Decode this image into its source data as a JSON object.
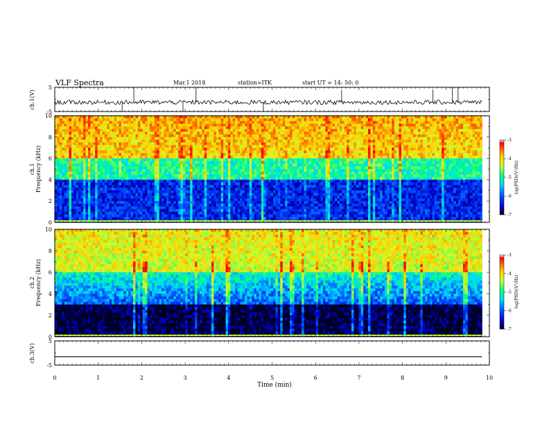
{
  "header": {
    "title": "VLF Spectra",
    "date": "Mar.1   2018",
    "station": "station=ITK",
    "start": "start  UT  =   14: 50: 0"
  },
  "colors": {
    "background": "#ffffff",
    "axes": "#000000",
    "colormap": [
      "#000020",
      "#0000c8",
      "#0050ff",
      "#00d8ff",
      "#00ff80",
      "#c8ff30",
      "#ffd000",
      "#ff5000",
      "#ff0000",
      "#ffffff"
    ]
  },
  "chart_data": [
    {
      "type": "line",
      "name": "ch1_waveform",
      "ylabel": "ch.1(V)",
      "ylim": [
        -5,
        5
      ],
      "yticks": [
        "5",
        "-5"
      ],
      "xlim": [
        0,
        10
      ],
      "baseline_v": -1.2,
      "trace_extent_min": 9.83,
      "spikes": [
        {
          "t": 1.82,
          "v": 5
        },
        {
          "t": 3.25,
          "v": 5
        },
        {
          "t": 4.8,
          "v": -5
        },
        {
          "t": 9.15,
          "v": 5
        },
        {
          "t": 9.28,
          "v": 5
        },
        {
          "t": 1.55,
          "v": -5
        },
        {
          "t": 2.95,
          "v": -5
        },
        {
          "t": 6.6,
          "v": 4
        },
        {
          "t": 8.7,
          "v": 4
        }
      ]
    },
    {
      "type": "heatmap",
      "name": "ch1_spectrogram",
      "ylabel": "ch.1\nFrequency (kHz)",
      "ylim": [
        0,
        10
      ],
      "yticks": [
        "0",
        "2",
        "4",
        "6",
        "8",
        "10"
      ],
      "xlim": [
        0,
        10
      ],
      "data_extent_min": 9.83,
      "color_scale": {
        "label": "log(PSD)(V²/Hz)",
        "min": -7,
        "max": -3,
        "ticks": [
          "-3",
          "-4",
          "-5",
          "-6",
          "-7"
        ]
      },
      "description_levels": {
        "low_band_0_4kHz": -6.5,
        "mid_band_4_6kHz": -5.2,
        "high_band_6_10kHz": -4.0
      }
    },
    {
      "type": "heatmap",
      "name": "ch2_spectrogram",
      "ylabel": "ch.2\nFrequency (kHz)",
      "ylim": [
        0,
        10
      ],
      "yticks": [
        "0",
        "2",
        "4",
        "6",
        "8",
        "10"
      ],
      "xlim": [
        0,
        10
      ],
      "data_extent_min": 9.83,
      "color_scale": {
        "label": "log(PSD)(V²/Hz)",
        "min": -7,
        "max": -3,
        "ticks": [
          "-3",
          "-4",
          "-5",
          "-6",
          "-7"
        ]
      },
      "description_levels": {
        "low_band_0_3kHz": -7.0,
        "mid_band_3_6kHz": -5.5,
        "high_band_6_10kHz": -4.2
      }
    },
    {
      "type": "line",
      "name": "ch3_waveform",
      "ylabel": "ch.3(V)",
      "ylim": [
        -5,
        5
      ],
      "yticks": [
        "5",
        "-5"
      ],
      "xlim": [
        0,
        10
      ],
      "baseline_v": -1.5,
      "trace_extent_min": 9.83
    }
  ],
  "x_axis": {
    "label": "Time (min)",
    "ticks": [
      "0",
      "1",
      "2",
      "3",
      "4",
      "5",
      "6",
      "7",
      "8",
      "9",
      "10"
    ]
  }
}
